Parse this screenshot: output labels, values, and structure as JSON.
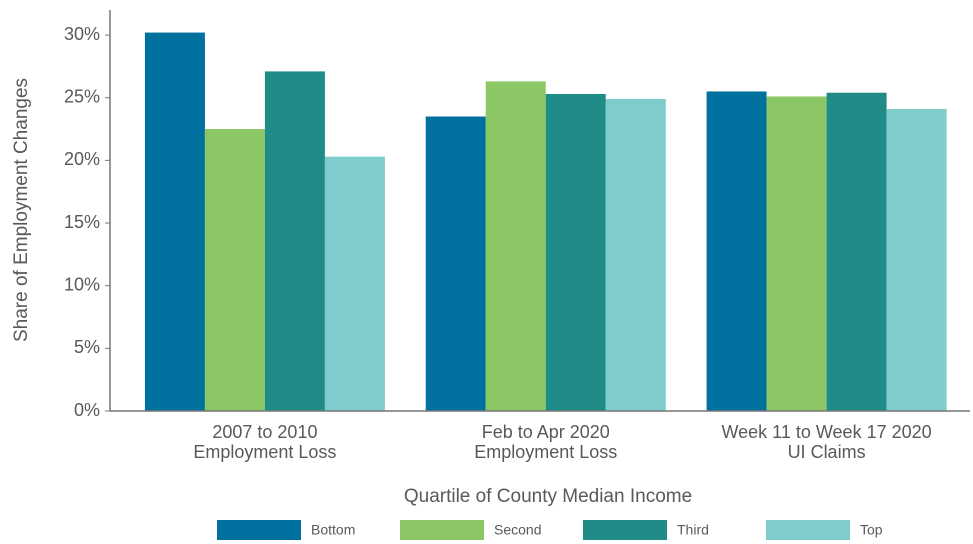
{
  "chart_data": {
    "type": "bar",
    "y_label": "Share of Employment Changes",
    "legend_title": "Quartile of County Median Income",
    "categories": [
      "2007 to 2010\nEmployment Loss",
      "Feb to Apr 2020\nEmployment Loss",
      "Week 11 to Week 17 2020\nUI Claims"
    ],
    "series": [
      {
        "name": "Bottom",
        "color": "#00719e",
        "values": [
          30.2,
          23.5,
          25.5
        ]
      },
      {
        "name": "Second",
        "color": "#8bc765",
        "values": [
          22.5,
          26.3,
          25.1
        ]
      },
      {
        "name": "Third",
        "color": "#1f8c88",
        "values": [
          27.1,
          25.3,
          25.4
        ]
      },
      {
        "name": "Top",
        "color": "#7ecdcc",
        "values": [
          20.3,
          24.9,
          24.1
        ]
      }
    ],
    "ylim": [
      0,
      32
    ],
    "yticks": [
      {
        "value": 0,
        "label": "0%"
      },
      {
        "value": 5,
        "label": "5%"
      },
      {
        "value": 10,
        "label": "10%"
      },
      {
        "value": 15,
        "label": "15%"
      },
      {
        "value": 20,
        "label": "20%"
      },
      {
        "value": 25,
        "label": "25%"
      },
      {
        "value": 30,
        "label": "30%"
      }
    ],
    "grid": false,
    "legend": "bottom"
  }
}
